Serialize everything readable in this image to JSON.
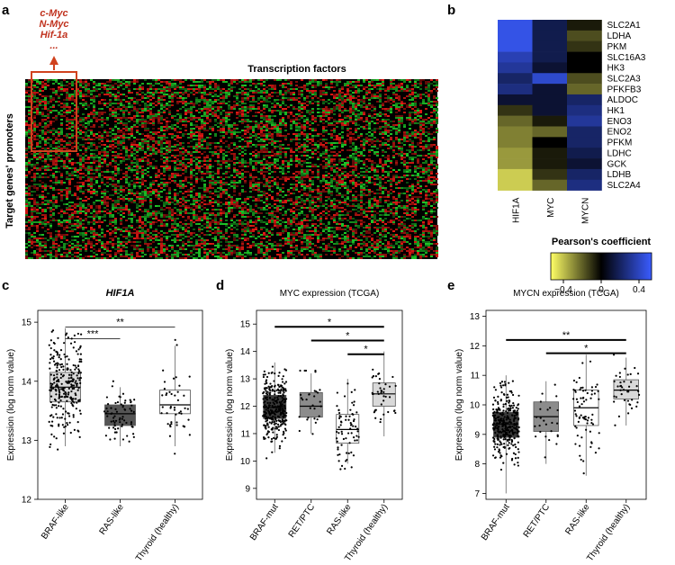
{
  "panel_labels": {
    "a": "a",
    "b": "b",
    "c": "c",
    "d": "d",
    "e": "e"
  },
  "panel_a": {
    "top_label": "Transcription factors",
    "side_label": "Target genes' promoters",
    "callout": [
      "c-Myc",
      "N-Myc",
      "Hif-1a",
      "..."
    ]
  },
  "chart_data": [
    {
      "type": "heatmap",
      "panel": "b",
      "columns": [
        "HIF1A",
        "MYC",
        "MYCN"
      ],
      "rows": [
        "SLC2A1",
        "LDHA",
        "PKM",
        "SLC16A3",
        "HK3",
        "SLC2A3",
        "PFKFB3",
        "ALDOC",
        "HK1",
        "ENO3",
        "ENO2",
        "PFKM",
        "LDHC",
        "GCK",
        "LDHB",
        "SLC2A4"
      ],
      "values": [
        [
          0.45,
          0.15,
          -0.05
        ],
        [
          0.45,
          0.15,
          -0.15
        ],
        [
          0.45,
          0.15,
          -0.1
        ],
        [
          0.35,
          0.15,
          0.0
        ],
        [
          0.3,
          0.1,
          0.0
        ],
        [
          0.2,
          0.4,
          -0.15
        ],
        [
          0.25,
          0.1,
          -0.2
        ],
        [
          0.1,
          0.1,
          0.2
        ],
        [
          -0.1,
          0.1,
          0.25
        ],
        [
          -0.2,
          -0.05,
          0.3
        ],
        [
          -0.25,
          -0.2,
          0.2
        ],
        [
          -0.25,
          0.0,
          0.2
        ],
        [
          -0.3,
          -0.05,
          0.15
        ],
        [
          -0.3,
          -0.05,
          0.1
        ],
        [
          -0.4,
          -0.1,
          0.2
        ],
        [
          -0.4,
          -0.2,
          0.25
        ]
      ],
      "legend_title": "Pearson's coefficient",
      "legend_ticks": [
        "−0.4",
        "0",
        "0.4"
      ],
      "range": [
        -0.5,
        0.5
      ]
    },
    {
      "type": "box",
      "panel": "c",
      "title": "HIF1A",
      "ylabel": "Expression (log norm value)",
      "ylim": [
        12,
        15.2
      ],
      "yticks": [
        12,
        13,
        14,
        15
      ],
      "categories": [
        "BRAF-like",
        "RAS-like",
        "Thyroid (healthy)"
      ],
      "stats": [
        {
          "q1": 13.65,
          "median": 13.9,
          "q3": 14.15,
          "whislo": 12.9,
          "whishi": 14.9,
          "n": 260,
          "color": "#d9d9d9"
        },
        {
          "q1": 13.25,
          "median": 13.45,
          "q3": 13.6,
          "whislo": 12.9,
          "whishi": 13.9,
          "n": 70,
          "color": "#555555"
        },
        {
          "q1": 13.45,
          "median": 13.6,
          "q3": 13.85,
          "whislo": 12.9,
          "whishi": 14.6,
          "n": 45,
          "color": "#ffffff"
        }
      ],
      "significance": [
        {
          "from": 0,
          "to": 1,
          "label": "***",
          "y": 14.72
        },
        {
          "from": 0,
          "to": 2,
          "label": "**",
          "y": 14.92
        }
      ]
    },
    {
      "type": "box",
      "panel": "d",
      "title": "MYC expression (TCGA)",
      "ylabel": "Expression (log norm value)",
      "ylim": [
        8.6,
        15.5
      ],
      "yticks": [
        9,
        10,
        11,
        12,
        13,
        14,
        15
      ],
      "categories": [
        "BRAF-mut",
        "RET/PTC",
        "RAS-like",
        "Thyroid (healthy)"
      ],
      "stats": [
        {
          "q1": 11.55,
          "median": 11.95,
          "q3": 12.4,
          "whislo": 10.3,
          "whishi": 13.6,
          "n": 300,
          "color": "#3a3a3a"
        },
        {
          "q1": 11.6,
          "median": 12.0,
          "q3": 12.5,
          "whislo": 11.0,
          "whishi": 13.2,
          "n": 30,
          "color": "#8c8c8c"
        },
        {
          "q1": 10.65,
          "median": 11.15,
          "q3": 11.7,
          "whislo": 9.9,
          "whishi": 13.0,
          "n": 70,
          "color": "#ffffff"
        },
        {
          "q1": 12.0,
          "median": 12.45,
          "q3": 12.85,
          "whislo": 10.9,
          "whishi": 14.0,
          "n": 40,
          "color": "#d9d9d9"
        }
      ],
      "significance": [
        {
          "from": 0,
          "to": 3,
          "label": "*",
          "y": 14.9
        },
        {
          "from": 1,
          "to": 3,
          "label": "*",
          "y": 14.4
        },
        {
          "from": 2,
          "to": 3,
          "label": "*",
          "y": 13.9
        }
      ]
    },
    {
      "type": "box",
      "panel": "e",
      "title": "MYCN expression (TCGA)",
      "ylabel": "Expression (log norm value)",
      "ylim": [
        6.8,
        13.2
      ],
      "yticks": [
        7,
        8,
        9,
        10,
        11,
        12,
        13
      ],
      "categories": [
        "BRAF-mut",
        "RET/PTC",
        "RAS-like",
        "Thyroid (healthy)"
      ],
      "stats": [
        {
          "q1": 8.9,
          "median": 9.35,
          "q3": 9.75,
          "whislo": 7.0,
          "whishi": 11.0,
          "n": 300,
          "color": "#3a3a3a"
        },
        {
          "q1": 9.1,
          "median": 9.6,
          "q3": 10.1,
          "whislo": 8.0,
          "whishi": 10.8,
          "n": 25,
          "color": "#8c8c8c"
        },
        {
          "q1": 9.3,
          "median": 9.9,
          "q3": 10.5,
          "whislo": 7.6,
          "whishi": 11.7,
          "n": 70,
          "color": "#ffffff"
        },
        {
          "q1": 10.2,
          "median": 10.5,
          "q3": 10.85,
          "whislo": 9.3,
          "whishi": 11.6,
          "n": 40,
          "color": "#d9d9d9"
        }
      ],
      "significance": [
        {
          "from": 0,
          "to": 3,
          "label": "**",
          "y": 12.2
        },
        {
          "from": 1,
          "to": 3,
          "label": "*",
          "y": 11.75
        }
      ]
    }
  ]
}
